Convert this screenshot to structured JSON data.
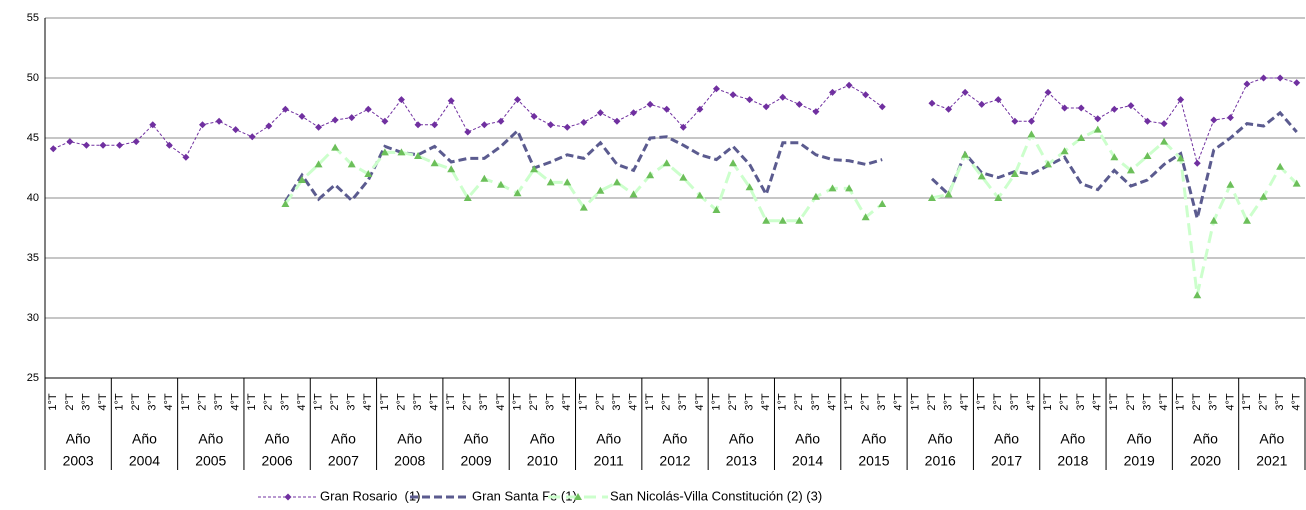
{
  "chart_data": {
    "type": "line",
    "categories": [
      "1°T",
      "2°T",
      "3°T",
      "4°T",
      "1°T",
      "2°T",
      "3°T",
      "4°T",
      "1°T",
      "2°T",
      "3°T",
      "4°T",
      "1°T",
      "2°T",
      "3°T",
      "4°T",
      "1°T",
      "2°T",
      "3°T",
      "4°T",
      "1°T",
      "2°T",
      "3°T",
      "4°T",
      "1°T",
      "2°T",
      "3°T",
      "4°T",
      "1°T",
      "2°T",
      "3°T",
      "4°T",
      "1°T",
      "2°T",
      "3°T",
      "4°T",
      "1°T",
      "2°T",
      "3°T",
      "4°T",
      "1°T",
      "2°T",
      "3°T",
      "4°T",
      "1°T",
      "2°T",
      "3°T",
      "4°T",
      "1°T",
      "2°T",
      "3°T",
      "4°T",
      "1°T",
      "2°T",
      "3°T",
      "4°T",
      "1°T",
      "2°T",
      "3°T",
      "4°T",
      "1°T",
      "2°T",
      "3°T",
      "4°T",
      "1°T",
      "2°T",
      "3°T",
      "4°T",
      "1°T",
      "2°T",
      "3°T",
      "4°T",
      "1°T",
      "2°T",
      "3°T",
      "4°T"
    ],
    "groups": [
      [
        "Año",
        "2003"
      ],
      [
        "Año",
        "2004"
      ],
      [
        "Año",
        "2005"
      ],
      [
        "Año",
        "2006"
      ],
      [
        "Año",
        "2007"
      ],
      [
        "Año",
        "2008"
      ],
      [
        "Año",
        "2009"
      ],
      [
        "Año",
        "2010"
      ],
      [
        "Año",
        "2011"
      ],
      [
        "Año",
        "2012"
      ],
      [
        "Año",
        "2013"
      ],
      [
        "Año",
        "2014"
      ],
      [
        "Año",
        "2015"
      ],
      [
        "Año",
        "2016"
      ],
      [
        "Año",
        "2017"
      ],
      [
        "Año",
        "2018"
      ],
      [
        "Año",
        "2019"
      ],
      [
        "Año",
        "2020"
      ],
      [
        "Año",
        "2021"
      ]
    ],
    "series": [
      {
        "name": "Gran Rosario  (1)",
        "color": "#7030a0",
        "marker": "diamond",
        "values": [
          44.1,
          44.7,
          44.4,
          44.4,
          44.4,
          44.7,
          46.1,
          44.4,
          43.4,
          46.1,
          46.4,
          45.7,
          45.1,
          46.0,
          47.4,
          46.8,
          45.9,
          46.5,
          46.7,
          47.4,
          46.4,
          48.2,
          46.1,
          46.1,
          48.1,
          45.5,
          46.1,
          46.4,
          48.2,
          46.8,
          46.1,
          45.9,
          46.3,
          47.1,
          46.4,
          47.1,
          47.8,
          47.4,
          45.9,
          47.4,
          49.1,
          48.6,
          48.2,
          47.6,
          48.4,
          47.8,
          47.2,
          48.8,
          49.4,
          48.6,
          47.6,
          null,
          null,
          47.9,
          47.4,
          48.8,
          47.8,
          48.2,
          46.4,
          46.4,
          48.8,
          47.5,
          47.5,
          46.6,
          47.4,
          47.7,
          46.4,
          46.2,
          48.2,
          42.9,
          46.5,
          46.7,
          49.5,
          50.0,
          50.0,
          49.6
        ]
      },
      {
        "name": "Gran Santa Fe (1)",
        "color": "#5b5b8f",
        "marker": "none",
        "values": [
          null,
          null,
          null,
          null,
          null,
          null,
          null,
          null,
          null,
          null,
          null,
          null,
          null,
          null,
          39.7,
          41.9,
          39.9,
          41.1,
          39.8,
          41.5,
          44.3,
          43.8,
          43.6,
          44.3,
          43.0,
          43.3,
          43.3,
          44.3,
          45.6,
          42.5,
          43.0,
          43.6,
          43.3,
          44.6,
          42.8,
          42.3,
          45.0,
          45.1,
          44.4,
          43.6,
          43.2,
          44.3,
          42.8,
          40.3,
          44.6,
          44.6,
          43.6,
          43.2,
          43.1,
          42.8,
          43.2,
          null,
          null,
          41.6,
          40.3,
          43.7,
          42.1,
          41.7,
          42.2,
          42.0,
          42.7,
          43.4,
          41.2,
          40.7,
          42.3,
          41.0,
          41.5,
          42.8,
          43.7,
          38.3,
          44.0,
          45.0,
          46.2,
          46.0,
          47.1,
          45.5
        ]
      },
      {
        "name": "San Nicolás-Villa Constitución (2) (3)",
        "color": "#ccffcc",
        "marker": "triangle",
        "marker_color": "#6cbf5a",
        "values": [
          null,
          null,
          null,
          null,
          null,
          null,
          null,
          null,
          null,
          null,
          null,
          null,
          null,
          null,
          39.5,
          41.5,
          42.8,
          44.2,
          42.8,
          42.0,
          43.8,
          43.8,
          43.5,
          42.9,
          42.4,
          40.0,
          41.6,
          41.1,
          40.4,
          42.4,
          41.3,
          41.3,
          39.2,
          40.6,
          41.3,
          40.3,
          41.9,
          42.9,
          41.7,
          40.2,
          39.0,
          42.9,
          40.9,
          38.1,
          38.1,
          38.1,
          40.1,
          40.8,
          40.8,
          38.4,
          39.5,
          null,
          null,
          40.0,
          40.3,
          43.6,
          41.8,
          40.0,
          42.0,
          45.3,
          42.8,
          43.9,
          45.0,
          45.7,
          43.4,
          42.3,
          43.5,
          44.7,
          43.3,
          31.9,
          38.1,
          41.1,
          38.1,
          40.1,
          42.6,
          41.2
        ]
      }
    ],
    "ylim": [
      25,
      55
    ],
    "yticks": [
      25,
      30,
      35,
      40,
      45,
      50,
      55
    ],
    "grid": true,
    "legend": "bottom"
  }
}
